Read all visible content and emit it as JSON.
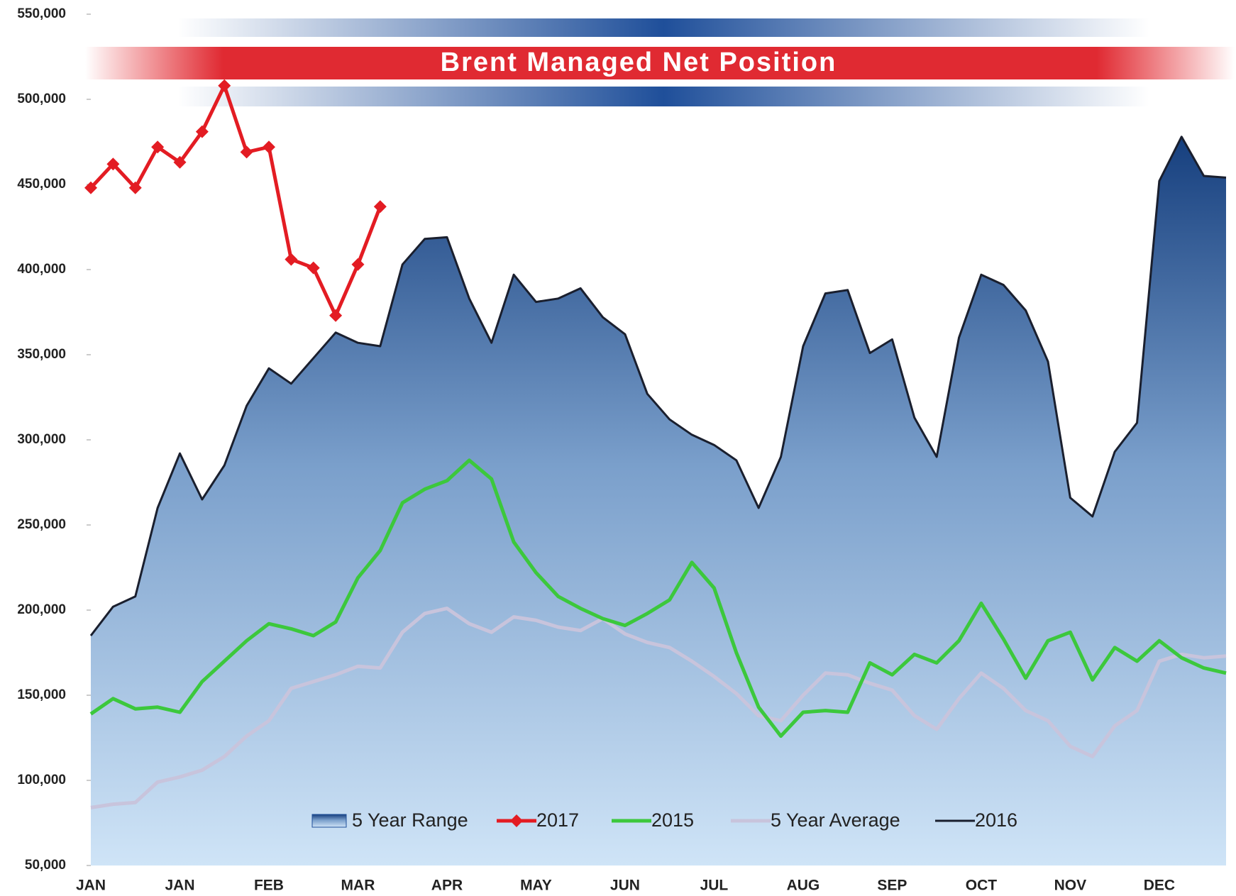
{
  "chart_data": {
    "type": "line",
    "title": "Brent Managed Net Position",
    "categories": [
      "JAN",
      null,
      null,
      null,
      "JAN",
      null,
      null,
      null,
      "FEB",
      null,
      null,
      null,
      "MAR",
      null,
      null,
      null,
      "APR",
      null,
      null,
      null,
      "MAY",
      null,
      null,
      null,
      "JUN",
      null,
      null,
      null,
      "JUL",
      null,
      null,
      null,
      "AUG",
      null,
      null,
      null,
      "SEP",
      null,
      null,
      null,
      "OCT",
      null,
      null,
      null,
      "NOV",
      null,
      null,
      null,
      "DEC",
      null,
      null,
      null
    ],
    "ylim": [
      50000,
      550000
    ],
    "yticks": [
      {
        "value": 50000,
        "label": "50,000"
      },
      {
        "value": 100000,
        "label": "100,000"
      },
      {
        "value": 150000,
        "label": "150,000"
      },
      {
        "value": 200000,
        "label": "200,000"
      },
      {
        "value": 250000,
        "label": "250,000"
      },
      {
        "value": 300000,
        "label": "300,000"
      },
      {
        "value": 350000,
        "label": "350,000"
      },
      {
        "value": 400000,
        "label": "400,000"
      },
      {
        "value": 450000,
        "label": "450,000"
      },
      {
        "value": 500000,
        "label": "500,000"
      },
      {
        "value": 550000,
        "label": "550,000"
      }
    ],
    "grid": false,
    "legend": "bottom",
    "series": [
      {
        "name": "5 Year Range",
        "type": "area",
        "color": "#2a5a9c",
        "values": [
          185000,
          202000,
          208000,
          260000,
          292000,
          265000,
          285000,
          320000,
          342000,
          333000,
          348000,
          363000,
          357000,
          355000,
          403000,
          418000,
          419000,
          383000,
          357000,
          397000,
          381000,
          383000,
          389000,
          372000,
          362000,
          327000,
          312000,
          303000,
          297000,
          288000,
          260000,
          290000,
          355000,
          386000,
          388000,
          351000,
          359000,
          313000,
          290000,
          360000,
          397000,
          391000,
          376000,
          346000,
          266000,
          255000,
          293000,
          310000,
          452000,
          478000,
          455000,
          454000
        ]
      },
      {
        "name": "2017",
        "type": "line",
        "marker": "diamond",
        "color": "#e31c23",
        "values": [
          448000,
          462000,
          448000,
          472000,
          463000,
          481000,
          508000,
          469000,
          472000,
          406000,
          401000,
          373000,
          403000,
          437000,
          null,
          null,
          null,
          null,
          null,
          null,
          null,
          null,
          null,
          null,
          null,
          null,
          null,
          null,
          null,
          null,
          null,
          null,
          null,
          null,
          null,
          null,
          null,
          null,
          null,
          null,
          null,
          null,
          null,
          null,
          null,
          null,
          null,
          null,
          null,
          null,
          null,
          null
        ]
      },
      {
        "name": "2015",
        "type": "line",
        "color": "#3cc83c",
        "values": [
          139000,
          148000,
          142000,
          143000,
          140000,
          158000,
          170000,
          182000,
          192000,
          189000,
          185000,
          193000,
          219000,
          235000,
          263000,
          271000,
          276000,
          288000,
          277000,
          240000,
          222000,
          208000,
          201000,
          195000,
          191000,
          198000,
          206000,
          228000,
          213000,
          175000,
          143000,
          126000,
          140000,
          141000,
          140000,
          169000,
          162000,
          174000,
          169000,
          182000,
          204000,
          183000,
          160000,
          182000,
          187000,
          159000,
          178000,
          170000,
          182000,
          172000,
          166000,
          163000
        ]
      },
      {
        "name": "5 Year Average",
        "type": "line",
        "color": "#c8c4dc",
        "values": [
          84000,
          86000,
          87000,
          99000,
          102000,
          106000,
          114000,
          126000,
          135000,
          154000,
          158000,
          162000,
          167000,
          166000,
          187000,
          198000,
          201000,
          192000,
          187000,
          196000,
          194000,
          190000,
          188000,
          195000,
          186000,
          181000,
          178000,
          170000,
          161000,
          151000,
          138000,
          135000,
          150000,
          163000,
          162000,
          157000,
          153000,
          138000,
          130000,
          148000,
          163000,
          154000,
          141000,
          135000,
          120000,
          114000,
          132000,
          141000,
          170000,
          174000,
          172000,
          173000
        ]
      },
      {
        "name": "2016",
        "type": "line",
        "color": "#1a1f2e",
        "values": [
          185000,
          202000,
          208000,
          260000,
          292000,
          265000,
          285000,
          320000,
          342000,
          333000,
          348000,
          363000,
          357000,
          355000,
          403000,
          418000,
          419000,
          383000,
          357000,
          397000,
          381000,
          383000,
          389000,
          372000,
          362000,
          327000,
          312000,
          303000,
          297000,
          288000,
          260000,
          290000,
          355000,
          386000,
          388000,
          351000,
          359000,
          313000,
          290000,
          360000,
          397000,
          391000,
          376000,
          346000,
          266000,
          255000,
          293000,
          310000,
          452000,
          478000,
          455000,
          454000
        ]
      }
    ]
  }
}
